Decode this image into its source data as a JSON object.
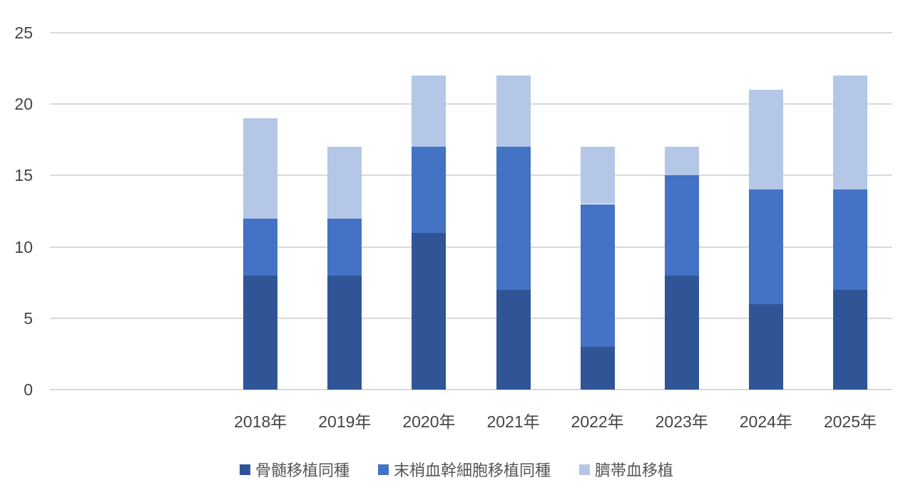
{
  "chart_data": {
    "type": "bar",
    "stacked": true,
    "title": "",
    "xlabel": "",
    "ylabel": "",
    "categories": [
      "2018年",
      "2019年",
      "2020年",
      "2021年",
      "2022年",
      "2023年",
      "2024年",
      "2025年"
    ],
    "series": [
      {
        "name": "骨髄移植同種",
        "slug": "bone-marrow-transplant-allogeneic",
        "color": "#2F5597",
        "values": [
          8,
          8,
          11,
          7,
          3,
          8,
          6,
          7
        ]
      },
      {
        "name": "末梢血幹細胞移植同種",
        "slug": "peripheral-blood-stem-cell-transplant-allogeneic",
        "color": "#4472C4",
        "values": [
          4,
          4,
          6,
          10,
          10,
          7,
          8,
          7
        ]
      },
      {
        "name": "臍帯血移植",
        "slug": "cord-blood-transplant",
        "color": "#B4C7E7",
        "values": [
          7,
          5,
          5,
          5,
          4,
          2,
          7,
          8
        ]
      }
    ],
    "stack_totals": [
      19,
      17,
      22,
      22,
      17,
      17,
      21,
      22
    ],
    "ylim": [
      0,
      25
    ],
    "y_ticks": [
      0,
      5,
      10,
      15,
      20,
      25
    ],
    "grid": "horizontal",
    "gridline_color": "#D9D9D9",
    "axis_text_color": "#444444",
    "legend_text_color": "#555555",
    "legend_position": "bottom",
    "leading_empty_slots": 2
  }
}
